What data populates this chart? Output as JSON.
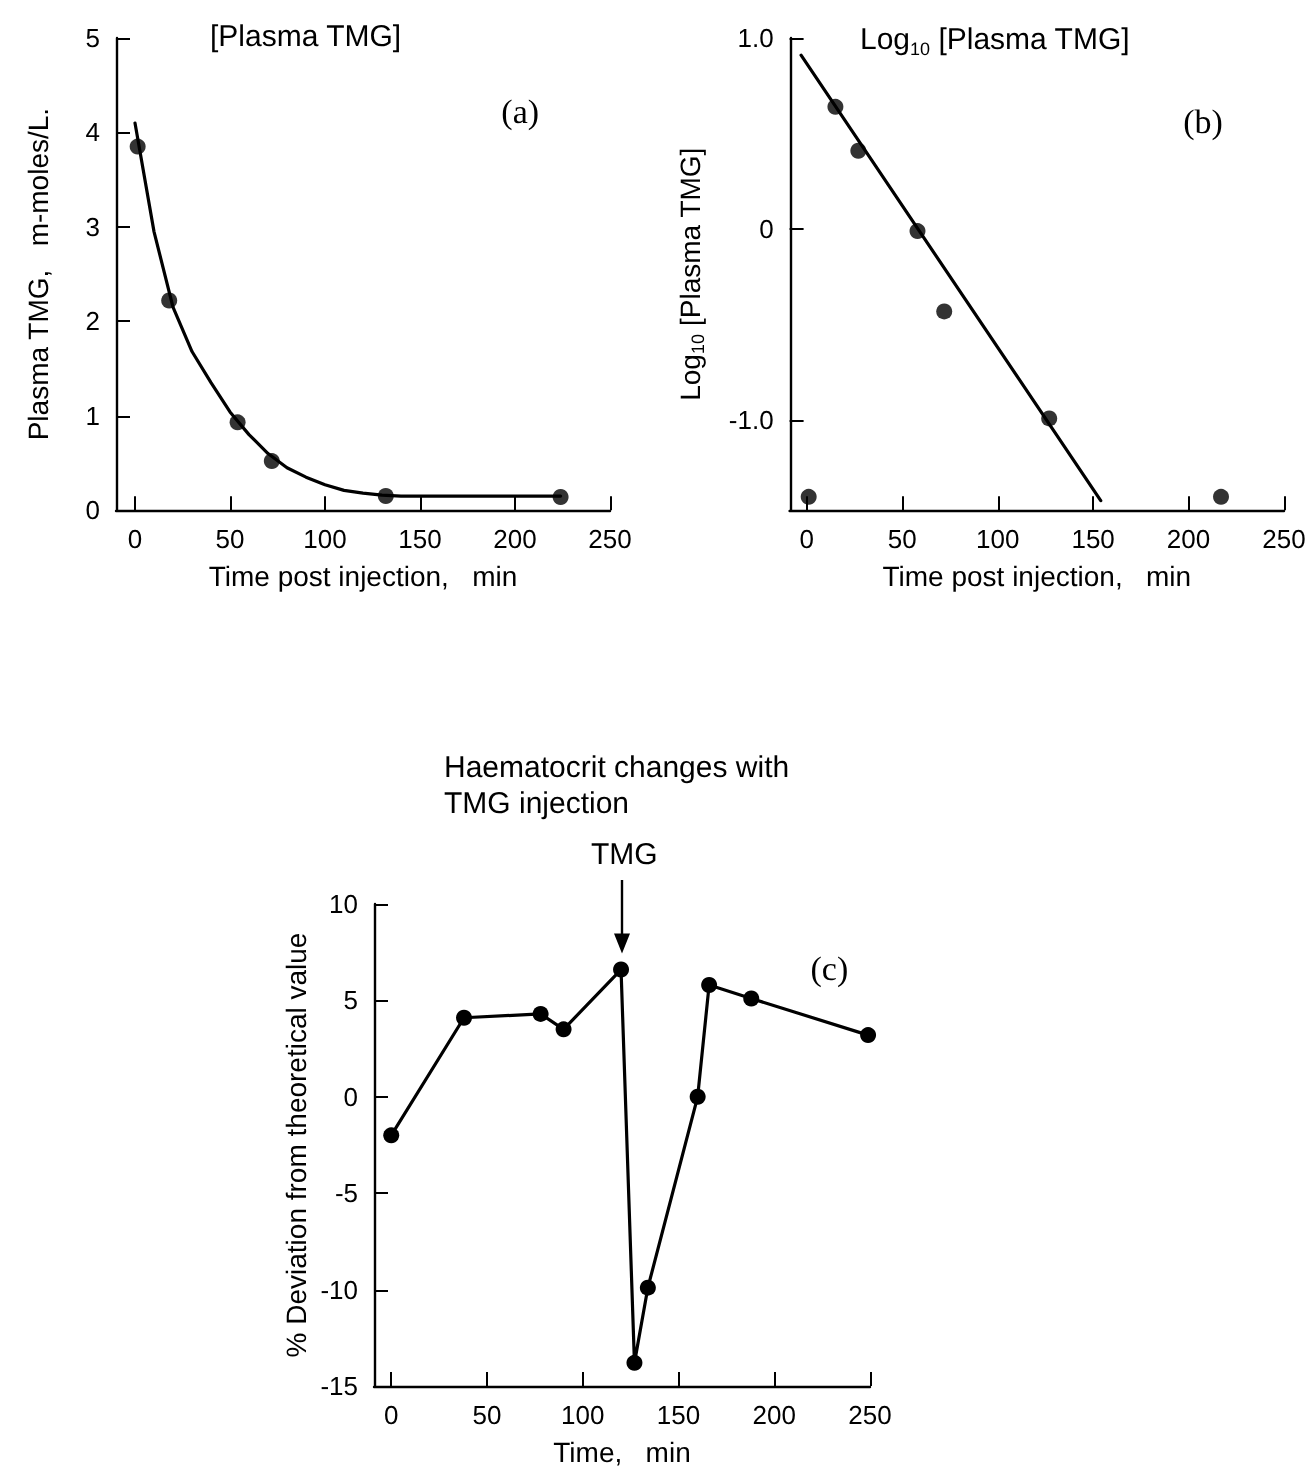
{
  "chart_data": [
    {
      "type": "scatter",
      "title": "[Plasma TMG]",
      "xlabel": "Time post injection,   min",
      "ylabel": "Plasma TMG,   m-moles/L.",
      "annotations": [
        "(a)"
      ],
      "marker": "circle",
      "line_style": "solid",
      "xlim": [
        -10,
        250
      ],
      "ylim": [
        0,
        5
      ],
      "xticks": [
        0,
        50,
        100,
        150,
        200,
        250
      ],
      "yticks": [
        0,
        1,
        2,
        3,
        4,
        5
      ],
      "series": [
        {
          "type": "scatter",
          "color": "#000000",
          "x": [
            1.4,
            18,
            54,
            72,
            132,
            224
          ],
          "values": [
            3.85,
            2.22,
            0.93,
            0.52,
            0.15,
            0.14
          ]
        },
        {
          "type": "line",
          "marker": "none",
          "color": "#000000",
          "x": [
            0,
            10,
            20,
            30,
            40,
            50,
            60,
            70,
            80,
            90,
            100,
            110,
            120,
            130,
            140,
            180,
            224
          ],
          "values": [
            4.1,
            2.95,
            2.15,
            1.68,
            1.35,
            1.04,
            0.8,
            0.6,
            0.45,
            0.35,
            0.27,
            0.21,
            0.18,
            0.16,
            0.15,
            0.15,
            0.15
          ]
        }
      ]
    },
    {
      "type": "scatter",
      "title": "Log$_{10}$ [Plasma TMG]",
      "xlabel": "Time post injection,   min",
      "ylabel": "Log$_{10}$ [Plasma TMG]",
      "annotations": [
        "(b)"
      ],
      "marker": "circle",
      "line_style": "solid",
      "xlim": [
        -9,
        250
      ],
      "ylim": [
        -1.47,
        1.0
      ],
      "xticks": [
        0,
        50,
        100,
        150,
        200,
        250
      ],
      "yticks": [
        {
          "value": -1,
          "label": "-1.0"
        },
        0,
        {
          "value": 1,
          "label": "1.0"
        }
      ],
      "series": [
        {
          "type": "scatter",
          "color": "#000000",
          "x": [
            1,
            15,
            27,
            58,
            72,
            127,
            217
          ],
          "values": [
            -1.4,
            0.64,
            0.41,
            -0.01,
            -0.43,
            -0.99,
            -1.4
          ]
        },
        {
          "type": "line",
          "marker": "none",
          "color": "#000000",
          "x": [
            -3,
            154
          ],
          "values": [
            0.91,
            -1.42
          ]
        }
      ]
    },
    {
      "type": "line",
      "title": "Haematocrit changes with TMG injection",
      "xlabel": "Time,   min",
      "ylabel": "% Deviation from theoretical value",
      "annotations": [
        "(c)",
        "TMG"
      ],
      "marker": "circle",
      "line_style": "solid",
      "xlim": [
        -9,
        250
      ],
      "ylim": [
        -15,
        10
      ],
      "xticks": [
        0,
        50,
        100,
        150,
        200,
        250
      ],
      "yticks": [
        -15,
        -10,
        -5,
        0,
        5,
        10
      ],
      "series": [
        {
          "color": "#000000",
          "x": [
            0,
            38,
            78,
            90,
            120,
            127,
            134,
            160,
            166,
            188,
            249
          ],
          "values": [
            -2.0,
            4.1,
            4.3,
            3.5,
            6.6,
            -13.8,
            -9.9,
            0,
            5.8,
            5.1,
            3.2
          ]
        }
      ]
    }
  ]
}
